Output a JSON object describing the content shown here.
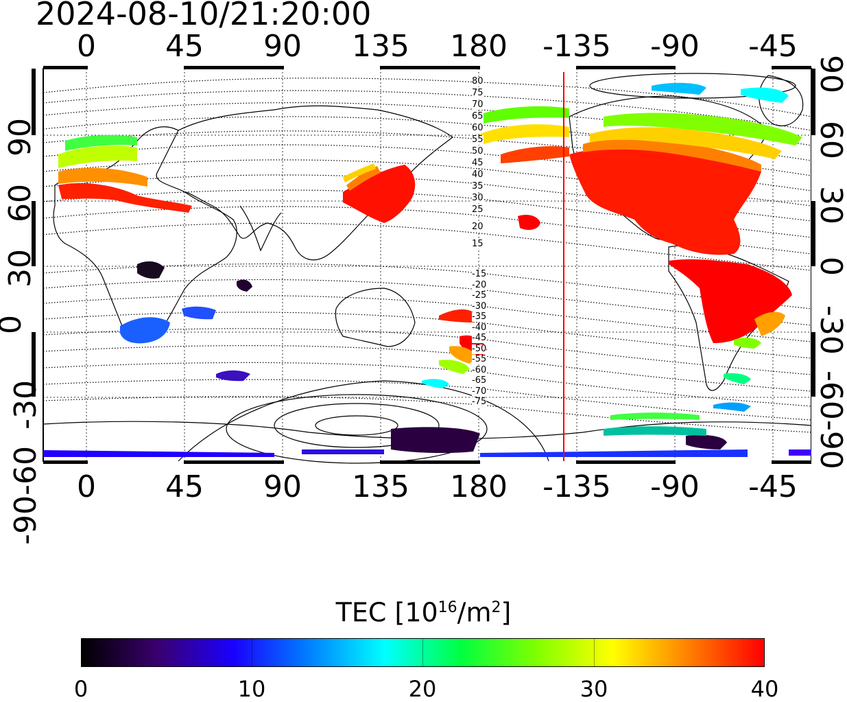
{
  "title": "2024-08-10/21:20:00",
  "map": {
    "top_lon_labels": [
      "0",
      "45",
      "90",
      "135",
      "180",
      "-135",
      "-90",
      "-45"
    ],
    "bottom_lon_labels": [
      "0",
      "45",
      "90",
      "135",
      "180",
      "-135",
      "-90",
      "-45"
    ],
    "left_lat_labels": [
      "90",
      "60",
      "30",
      "0",
      "-30",
      "-60",
      "-90"
    ],
    "right_lat_labels": [
      "90",
      "60",
      "30",
      "0",
      "-30",
      "-60",
      "-90"
    ],
    "contour_labels_north": [
      "80",
      "75",
      "70",
      "65",
      "60",
      "55",
      "50",
      "45",
      "40",
      "35",
      "30",
      "25",
      "20",
      "15"
    ],
    "contour_labels_south": [
      "-15",
      "-20",
      "-25",
      "-30",
      "-35",
      "-40",
      "-45",
      "-50",
      "-55",
      "-60",
      "-65",
      "-70",
      "-75"
    ],
    "terminator_color": "#ff0000"
  },
  "colorbar": {
    "label_prefix": "TEC  [10",
    "label_exp1": "16",
    "label_mid": "/m",
    "label_exp2": "2",
    "label_suffix": "]",
    "tick_labels": [
      "0",
      "10",
      "20",
      "30",
      "40"
    ],
    "min": 0,
    "max": 40,
    "gradient": [
      "#000000",
      "#3a006e",
      "#1a00ff",
      "#0080ff",
      "#00ffff",
      "#00ff40",
      "#80ff00",
      "#ffff00",
      "#ff8000",
      "#ff0000"
    ]
  }
}
